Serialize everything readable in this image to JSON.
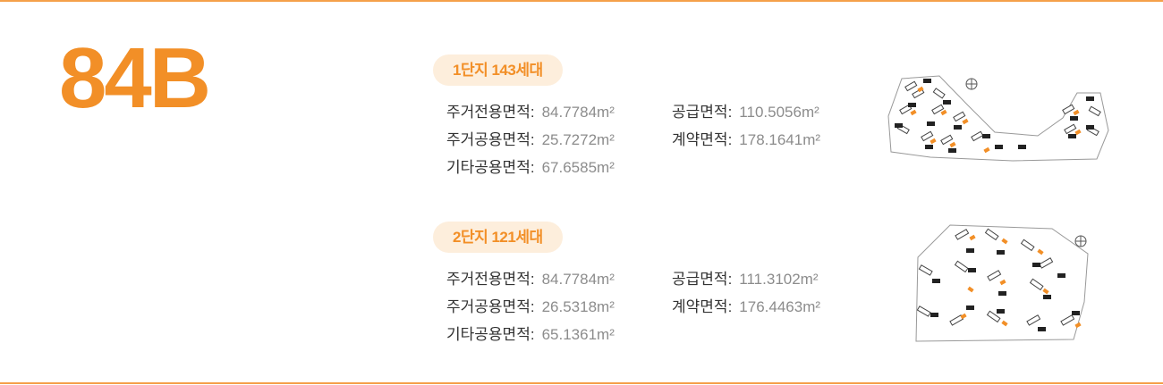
{
  "unit_type": "84B",
  "colon": ":",
  "complexes": [
    {
      "name": "1단지 143세대",
      "items": [
        {
          "label": "주거전용면적",
          "value": "84.7784m²"
        },
        {
          "label": "주거공용면적",
          "value": "25.7272m²"
        },
        {
          "label": "기타공용면적",
          "value": "67.6585m²"
        },
        {
          "label": "공급면적",
          "value": "110.5056m²"
        },
        {
          "label": "계약면적",
          "value": "178.1641m²"
        }
      ]
    },
    {
      "name": "2단지 121세대",
      "items": [
        {
          "label": "주거전용면적",
          "value": "84.7784m²"
        },
        {
          "label": "주거공용면적",
          "value": "26.5318m²"
        },
        {
          "label": "기타공용면적",
          "value": "65.1361m²"
        },
        {
          "label": "공급면적",
          "value": "111.3102m²"
        },
        {
          "label": "계약면적",
          "value": "176.4463m²"
        }
      ]
    }
  ],
  "colors": {
    "accent": "#f28f27",
    "pill_bg": "#fdeedc",
    "rule": "#f5a04a",
    "label": "#333333",
    "value": "#8c8c8c"
  }
}
